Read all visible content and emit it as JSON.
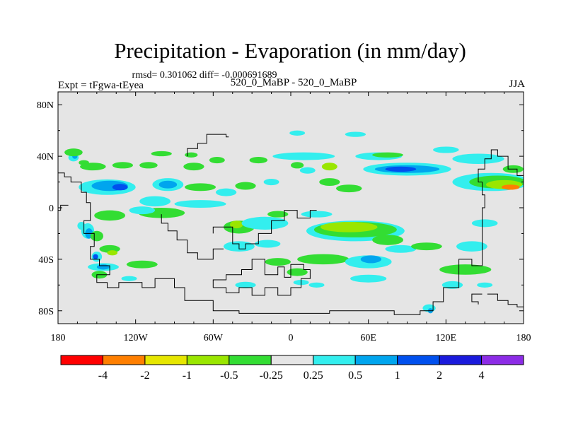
{
  "chart_data": {
    "type": "heatmap",
    "title": "Precipitation - Evaporation (in mm/day)",
    "subtitle": "rmsd= 0.301062 diff= -0.000691689",
    "left_string": "Expt = tFgwa-tEyea",
    "center_string": "520_0_MaBP - 520_0_MaBP",
    "right_string": "JJA",
    "units": "mm/day",
    "x_ticks": [
      "180",
      "120W",
      "60W",
      "0",
      "60E",
      "120E",
      "180"
    ],
    "y_ticks": [
      "80N",
      "40N",
      "0",
      "40S",
      "80S"
    ],
    "x_range": [
      -180,
      180
    ],
    "y_range": [
      -90,
      90
    ],
    "colorbar": {
      "levels": [
        "-4",
        "-2",
        "-1",
        "-0.5",
        "-0.25",
        "0.25",
        "0.5",
        "1",
        "2",
        "4"
      ],
      "colors": [
        "#ff0000",
        "#ff7f00",
        "#e6e600",
        "#9ae600",
        "#33dd33",
        "#e5e5e5",
        "#33eeee",
        "#00a5ee",
        "#0050ee",
        "#1a1adc",
        "#8c2ce6"
      ]
    },
    "background_color": "#e5e5e5",
    "contour_patches": [
      {
        "lon": -168,
        "lat": 39,
        "rx": 4,
        "ry": 3,
        "level": 6
      },
      {
        "lon": -167,
        "lat": 40,
        "rx": 2,
        "ry": 2,
        "level": 7
      },
      {
        "lon": -168,
        "lat": 43,
        "rx": 7,
        "ry": 3,
        "level": 4
      },
      {
        "lon": -160,
        "lat": 35,
        "rx": 4,
        "ry": 2,
        "level": 4
      },
      {
        "lon": -153,
        "lat": 32,
        "rx": 10,
        "ry": 3,
        "level": 4
      },
      {
        "lon": -130,
        "lat": 33,
        "rx": 8,
        "ry": 2.5,
        "level": 4
      },
      {
        "lon": -110,
        "lat": 33,
        "rx": 7,
        "ry": 2.5,
        "level": 4
      },
      {
        "lon": -100,
        "lat": 42,
        "rx": 8,
        "ry": 2,
        "level": 4
      },
      {
        "lon": -75,
        "lat": 32,
        "rx": 8,
        "ry": 3,
        "level": 4
      },
      {
        "lon": -77,
        "lat": 41,
        "rx": 5,
        "ry": 2,
        "level": 4
      },
      {
        "lon": -57,
        "lat": 37,
        "rx": 6,
        "ry": 2.5,
        "level": 4
      },
      {
        "lon": -25,
        "lat": 37,
        "rx": 7,
        "ry": 2.5,
        "level": 4
      },
      {
        "lon": 5,
        "lat": 33,
        "rx": 5,
        "ry": 2.5,
        "level": 4
      },
      {
        "lon": 5,
        "lat": 58,
        "rx": 6,
        "ry": 2,
        "level": 6
      },
      {
        "lon": 10,
        "lat": 40,
        "rx": 24,
        "ry": 3,
        "level": 6
      },
      {
        "lon": 13,
        "lat": 29,
        "rx": 6,
        "ry": 2.5,
        "level": 6
      },
      {
        "lon": 30,
        "lat": 32,
        "rx": 6,
        "ry": 3,
        "level": 3
      },
      {
        "lon": 50,
        "lat": 57,
        "rx": 8,
        "ry": 2,
        "level": 6
      },
      {
        "lon": 68,
        "lat": 40,
        "rx": 18,
        "ry": 3,
        "level": 6
      },
      {
        "lon": 75,
        "lat": 41,
        "rx": 12,
        "ry": 2,
        "level": 4
      },
      {
        "lon": 90,
        "lat": 30,
        "rx": 34,
        "ry": 5,
        "level": 6
      },
      {
        "lon": 90,
        "lat": 30,
        "rx": 25,
        "ry": 3,
        "level": 7
      },
      {
        "lon": 85,
        "lat": 30,
        "rx": 12,
        "ry": 2,
        "level": 8
      },
      {
        "lon": 120,
        "lat": 45,
        "rx": 10,
        "ry": 2.5,
        "level": 6
      },
      {
        "lon": 145,
        "lat": 38,
        "rx": 20,
        "ry": 4,
        "level": 6
      },
      {
        "lon": 155,
        "lat": 20,
        "rx": 30,
        "ry": 7,
        "level": 6
      },
      {
        "lon": 160,
        "lat": 20,
        "rx": 22,
        "ry": 5,
        "level": 4
      },
      {
        "lon": 165,
        "lat": 18,
        "rx": 14,
        "ry": 3.5,
        "level": 3
      },
      {
        "lon": 170,
        "lat": 16,
        "rx": 7,
        "ry": 2,
        "level": 1
      },
      {
        "lon": 172,
        "lat": 30,
        "rx": 8,
        "ry": 3,
        "level": 4
      },
      {
        "lon": -142,
        "lat": 16,
        "rx": 22,
        "ry": 6,
        "level": 6
      },
      {
        "lon": -140,
        "lat": 17,
        "rx": 14,
        "ry": 4,
        "level": 7
      },
      {
        "lon": -132,
        "lat": 16,
        "rx": 6,
        "ry": 2.5,
        "level": 8
      },
      {
        "lon": -95,
        "lat": 18,
        "rx": 12,
        "ry": 5,
        "level": 6
      },
      {
        "lon": -95,
        "lat": 18,
        "rx": 7,
        "ry": 3,
        "level": 7
      },
      {
        "lon": -70,
        "lat": 16,
        "rx": 12,
        "ry": 3,
        "level": 4
      },
      {
        "lon": -50,
        "lat": 12,
        "rx": 8,
        "ry": 3,
        "level": 6
      },
      {
        "lon": -35,
        "lat": 17,
        "rx": 8,
        "ry": 3,
        "level": 4
      },
      {
        "lon": -15,
        "lat": 20,
        "rx": 6,
        "ry": 2.5,
        "level": 6
      },
      {
        "lon": 30,
        "lat": 20,
        "rx": 8,
        "ry": 3,
        "level": 4
      },
      {
        "lon": 45,
        "lat": 15,
        "rx": 10,
        "ry": 3,
        "level": 4
      },
      {
        "lon": -105,
        "lat": 5,
        "rx": 12,
        "ry": 4,
        "level": 6
      },
      {
        "lon": -70,
        "lat": 3,
        "rx": 20,
        "ry": 3,
        "level": 6
      },
      {
        "lon": -100,
        "lat": -4,
        "rx": 18,
        "ry": 4,
        "level": 4
      },
      {
        "lon": -140,
        "lat": -6,
        "rx": 12,
        "ry": 4,
        "level": 4
      },
      {
        "lon": -162,
        "lat": -14,
        "rx": 3,
        "ry": 3,
        "level": 6
      },
      {
        "lon": -157,
        "lat": -18,
        "rx": 5,
        "ry": 6,
        "level": 6
      },
      {
        "lon": -156,
        "lat": -20,
        "rx": 3,
        "ry": 4,
        "level": 7
      },
      {
        "lon": -150,
        "lat": -22,
        "rx": 5,
        "ry": 4,
        "level": 4
      },
      {
        "lon": -115,
        "lat": -2,
        "rx": 10,
        "ry": 3,
        "level": 6
      },
      {
        "lon": -40,
        "lat": -15,
        "rx": 12,
        "ry": 5,
        "level": 4
      },
      {
        "lon": -42,
        "lat": -13,
        "rx": 5,
        "ry": 3,
        "level": 3
      },
      {
        "lon": -20,
        "lat": -12,
        "rx": 18,
        "ry": 5,
        "level": 6
      },
      {
        "lon": -10,
        "lat": -5,
        "rx": 8,
        "ry": 2.5,
        "level": 4
      },
      {
        "lon": 50,
        "lat": -18,
        "rx": 38,
        "ry": 8,
        "level": 6
      },
      {
        "lon": 50,
        "lat": -17,
        "rx": 32,
        "ry": 6,
        "level": 4
      },
      {
        "lon": 45,
        "lat": -15,
        "rx": 22,
        "ry": 4,
        "level": 3
      },
      {
        "lon": 75,
        "lat": -25,
        "rx": 12,
        "ry": 4,
        "level": 4
      },
      {
        "lon": 20,
        "lat": -5,
        "rx": 12,
        "ry": 2.5,
        "level": 6
      },
      {
        "lon": 85,
        "lat": -32,
        "rx": 12,
        "ry": 3,
        "level": 6
      },
      {
        "lon": -40,
        "lat": -30,
        "rx": 12,
        "ry": 4,
        "level": 6
      },
      {
        "lon": -18,
        "lat": -28,
        "rx": 10,
        "ry": 3,
        "level": 6
      },
      {
        "lon": -10,
        "lat": -42,
        "rx": 10,
        "ry": 3,
        "level": 4
      },
      {
        "lon": 25,
        "lat": -40,
        "rx": 20,
        "ry": 4,
        "level": 4
      },
      {
        "lon": 60,
        "lat": -42,
        "rx": 18,
        "ry": 5,
        "level": 6
      },
      {
        "lon": 62,
        "lat": -40,
        "rx": 8,
        "ry": 3,
        "level": 7
      },
      {
        "lon": 105,
        "lat": -30,
        "rx": 12,
        "ry": 3,
        "level": 4
      },
      {
        "lon": 140,
        "lat": -30,
        "rx": 12,
        "ry": 4,
        "level": 6
      },
      {
        "lon": 150,
        "lat": -12,
        "rx": 10,
        "ry": 3,
        "level": 6
      },
      {
        "lon": -140,
        "lat": -32,
        "rx": 8,
        "ry": 3,
        "level": 4
      },
      {
        "lon": -138,
        "lat": -35,
        "rx": 4,
        "ry": 2,
        "level": 3
      },
      {
        "lon": -150,
        "lat": -38,
        "rx": 4,
        "ry": 4,
        "level": 6
      },
      {
        "lon": -151,
        "lat": -38,
        "rx": 2,
        "ry": 2,
        "level": 8
      },
      {
        "lon": -145,
        "lat": -46,
        "rx": 12,
        "ry": 3,
        "level": 6
      },
      {
        "lon": -145,
        "lat": -46,
        "rx": 5,
        "ry": 2,
        "level": 7
      },
      {
        "lon": -115,
        "lat": -44,
        "rx": 12,
        "ry": 3,
        "level": 4
      },
      {
        "lon": -148,
        "lat": -52,
        "rx": 6,
        "ry": 3,
        "level": 4
      },
      {
        "lon": -125,
        "lat": -55,
        "rx": 6,
        "ry": 2,
        "level": 6
      },
      {
        "lon": 5,
        "lat": -50,
        "rx": 8,
        "ry": 3,
        "level": 4
      },
      {
        "lon": -35,
        "lat": -60,
        "rx": 8,
        "ry": 2.5,
        "level": 6
      },
      {
        "lon": 8,
        "lat": -58,
        "rx": 6,
        "ry": 2,
        "level": 6
      },
      {
        "lon": 20,
        "lat": -60,
        "rx": 6,
        "ry": 2,
        "level": 6
      },
      {
        "lon": 60,
        "lat": -55,
        "rx": 14,
        "ry": 3,
        "level": 6
      },
      {
        "lon": 135,
        "lat": -48,
        "rx": 20,
        "ry": 4,
        "level": 4
      },
      {
        "lon": 125,
        "lat": -60,
        "rx": 8,
        "ry": 3,
        "level": 6
      },
      {
        "lon": 150,
        "lat": -60,
        "rx": 6,
        "ry": 2,
        "level": 6
      },
      {
        "lon": 107,
        "lat": -78,
        "rx": 5,
        "ry": 3,
        "level": 6
      },
      {
        "lon": 108,
        "lat": -80,
        "rx": 2,
        "ry": 2,
        "level": 7
      }
    ],
    "coastlines": [
      [
        [
          -180,
          27
        ],
        [
          -175,
          27
        ],
        [
          -175,
          24
        ],
        [
          -170,
          24
        ],
        [
          -170,
          20
        ],
        [
          -162,
          20
        ],
        [
          -162,
          12
        ],
        [
          -158,
          12
        ],
        [
          -158,
          4
        ],
        [
          -155,
          4
        ],
        [
          -155,
          -10
        ],
        [
          -160,
          -10
        ],
        [
          -160,
          -20
        ],
        [
          -152,
          -20
        ],
        [
          -152,
          -30
        ],
        [
          -155,
          -30
        ],
        [
          -155,
          -40
        ],
        [
          -148,
          -40
        ],
        [
          -148,
          -45
        ],
        [
          -140,
          -45
        ],
        [
          -140,
          -52
        ],
        [
          -150,
          -52
        ],
        [
          -150,
          -58
        ],
        [
          -142,
          -58
        ],
        [
          -142,
          -62
        ],
        [
          -133,
          -62
        ],
        [
          -133,
          -58
        ],
        [
          -115,
          -58
        ],
        [
          -115,
          -62
        ],
        [
          -105,
          -62
        ],
        [
          -105,
          -55
        ],
        [
          -90,
          -55
        ],
        [
          -90,
          -62
        ],
        [
          -82,
          -62
        ],
        [
          -82,
          -72
        ],
        [
          -60,
          -72
        ],
        [
          -60,
          -80
        ],
        [
          -40,
          -80
        ],
        [
          -40,
          -82
        ],
        [
          30,
          -82
        ],
        [
          30,
          -80
        ],
        [
          80,
          -80
        ],
        [
          80,
          -83
        ],
        [
          100,
          -83
        ],
        [
          100,
          -80
        ],
        [
          110,
          -80
        ],
        [
          110,
          -73
        ],
        [
          118,
          -73
        ],
        [
          118,
          -62
        ],
        [
          130,
          -62
        ],
        [
          130,
          -40
        ],
        [
          140,
          -40
        ],
        [
          140,
          -45
        ],
        [
          148,
          -45
        ],
        [
          148,
          0
        ],
        [
          150,
          0
        ],
        [
          150,
          10
        ],
        [
          148,
          10
        ],
        [
          148,
          20
        ],
        [
          145,
          20
        ],
        [
          145,
          30
        ],
        [
          150,
          30
        ],
        [
          150,
          38
        ],
        [
          155,
          38
        ],
        [
          155,
          45
        ],
        [
          160,
          45
        ],
        [
          160,
          40
        ],
        [
          168,
          40
        ],
        [
          168,
          30
        ],
        [
          175,
          30
        ],
        [
          175,
          25
        ],
        [
          180,
          25
        ]
      ],
      [
        [
          152,
          -67
        ],
        [
          160,
          -67
        ],
        [
          160,
          -72
        ],
        [
          168,
          -72
        ],
        [
          168,
          -75
        ],
        [
          175,
          -75
        ],
        [
          175,
          -77
        ],
        [
          180,
          -77
        ]
      ],
      [
        [
          148,
          -67
        ],
        [
          140,
          -67
        ],
        [
          140,
          -73
        ],
        [
          145,
          -73
        ],
        [
          145,
          -75
        ]
      ],
      [
        [
          -180,
          -2
        ],
        [
          -178,
          -2
        ],
        [
          -178,
          2
        ],
        [
          -172,
          2
        ]
      ],
      [
        [
          -60,
          -62
        ],
        [
          -60,
          -56
        ],
        [
          -50,
          -56
        ],
        [
          -50,
          -52
        ],
        [
          -38,
          -52
        ],
        [
          -38,
          -48
        ],
        [
          -30,
          -48
        ],
        [
          -30,
          -40
        ],
        [
          -20,
          -40
        ],
        [
          -20,
          -52
        ],
        [
          -10,
          -52
        ],
        [
          -10,
          -46
        ],
        [
          -5,
          -46
        ],
        [
          -5,
          -54
        ],
        [
          0,
          -54
        ],
        [
          0,
          -44
        ],
        [
          10,
          -44
        ],
        [
          10,
          -48
        ],
        [
          15,
          -48
        ],
        [
          15,
          -55
        ],
        [
          8,
          -55
        ],
        [
          8,
          -62
        ],
        [
          0,
          -62
        ],
        [
          0,
          -68
        ],
        [
          -10,
          -68
        ],
        [
          -10,
          -62
        ],
        [
          -20,
          -62
        ],
        [
          -20,
          -68
        ],
        [
          -30,
          -68
        ],
        [
          -30,
          -62
        ],
        [
          -40,
          -62
        ],
        [
          -40,
          -66
        ],
        [
          -50,
          -66
        ],
        [
          -50,
          -62
        ],
        [
          -60,
          -62
        ]
      ],
      [
        [
          -80,
          40
        ],
        [
          -80,
          46
        ],
        [
          -72,
          46
        ],
        [
          -72,
          50
        ],
        [
          -65,
          50
        ],
        [
          -65,
          57
        ],
        [
          -55,
          57
        ]
      ],
      [
        [
          -60,
          -20
        ],
        [
          -60,
          -15
        ],
        [
          -45,
          -15
        ],
        [
          -45,
          -28
        ],
        [
          -40,
          -28
        ],
        [
          -40,
          -32
        ],
        [
          -35,
          -32
        ],
        [
          -35,
          -28
        ],
        [
          -25,
          -28
        ],
        [
          -25,
          -20
        ],
        [
          -15,
          -20
        ],
        [
          -15,
          -10
        ],
        [
          -5,
          -10
        ],
        [
          -5,
          -2
        ],
        [
          5,
          -2
        ],
        [
          5,
          -8
        ],
        [
          15,
          -8
        ],
        [
          15,
          -2
        ],
        [
          20,
          -2
        ]
      ],
      [
        [
          -100,
          -5
        ],
        [
          -100,
          -12
        ],
        [
          -95,
          -12
        ],
        [
          -95,
          -18
        ],
        [
          -88,
          -18
        ],
        [
          -88,
          -25
        ],
        [
          -80,
          -25
        ],
        [
          -80,
          -35
        ],
        [
          -72,
          -35
        ],
        [
          -72,
          -40
        ],
        [
          -60,
          -40
        ],
        [
          -60,
          -32
        ],
        [
          -52,
          -32
        ]
      ],
      [
        [
          -55,
          57
        ],
        [
          -50,
          57
        ],
        [
          -50,
          55
        ],
        [
          -48,
          55
        ]
      ]
    ]
  }
}
